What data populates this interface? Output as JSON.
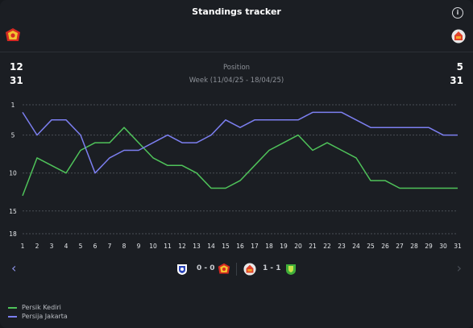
{
  "header": {
    "title": "Standings tracker",
    "info_icon": "info-icon"
  },
  "teams": {
    "left": {
      "logo": "persik-kediri-logo",
      "val1": "12",
      "val2": "31"
    },
    "right": {
      "logo": "persija-jakarta-logo",
      "val1": "5",
      "val2": "31"
    }
  },
  "labels": {
    "position": "Position",
    "week": "Week (11/04/25 - 18/04/25)"
  },
  "colors": {
    "persik": "#4fc35a",
    "persija": "#7c7ff0",
    "background": "#1b1e23"
  },
  "chart_data": {
    "type": "line",
    "title": "",
    "xlabel": "",
    "ylabel": "",
    "x": [
      1,
      2,
      3,
      4,
      5,
      6,
      7,
      8,
      9,
      10,
      11,
      12,
      13,
      14,
      15,
      16,
      17,
      18,
      19,
      20,
      21,
      22,
      23,
      24,
      25,
      26,
      27,
      28,
      29,
      30,
      31
    ],
    "y_ticks": [
      1,
      5,
      10,
      15,
      18
    ],
    "ylim": [
      1,
      18
    ],
    "y_inverted": true,
    "grid": "horizontal-dashed",
    "legend": "bottom-left",
    "series": [
      {
        "name": "Persik Kediri",
        "color": "#4fc35a",
        "values": [
          13,
          8,
          9,
          10,
          7,
          6,
          6,
          4,
          6,
          8,
          9,
          9,
          10,
          12,
          12,
          11,
          9,
          7,
          6,
          5,
          7,
          6,
          7,
          8,
          11,
          11,
          12,
          12,
          12,
          12,
          12
        ]
      },
      {
        "name": "Persija Jakarta",
        "color": "#7c7ff0",
        "values": [
          2,
          5,
          3,
          3,
          5,
          10,
          8,
          7,
          7,
          6,
          5,
          6,
          6,
          5,
          3,
          4,
          3,
          3,
          3,
          3,
          2,
          2,
          2,
          3,
          4,
          4,
          4,
          4,
          4,
          5,
          5
        ]
      }
    ]
  },
  "matches": [
    {
      "home_logo": "psis-logo",
      "score": "0 - 0",
      "away_logo": "persik-kediri-logo"
    },
    {
      "home_logo": "persija-jakarta-logo",
      "score": "1 - 1",
      "away_logo": "persebaya-logo"
    }
  ],
  "navigation": {
    "prev": "‹",
    "next": "›"
  }
}
